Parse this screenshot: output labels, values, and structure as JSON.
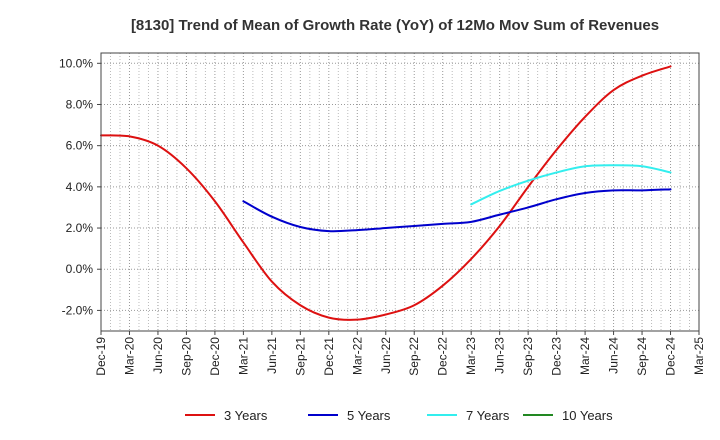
{
  "chart_data": {
    "type": "line",
    "title": "[8130]  Trend of Mean of Growth Rate (YoY) of 12Mo Mov Sum of Revenues",
    "xlabel": "",
    "ylabel": "",
    "ylim": [
      -3.0,
      10.5
    ],
    "yticks": [
      -2.0,
      0.0,
      2.0,
      4.0,
      6.0,
      8.0,
      10.0
    ],
    "ytick_labels": [
      "-2.0%",
      "0.0%",
      "2.0%",
      "4.0%",
      "6.0%",
      "8.0%",
      "10.0%"
    ],
    "categories": [
      "Dec-19",
      "Mar-20",
      "Jun-20",
      "Sep-20",
      "Dec-20",
      "Mar-21",
      "Jun-21",
      "Sep-21",
      "Dec-21",
      "Mar-22",
      "Jun-22",
      "Sep-22",
      "Dec-22",
      "Mar-23",
      "Jun-23",
      "Sep-23",
      "Dec-23",
      "Mar-24",
      "Jun-24",
      "Sep-24",
      "Dec-24",
      "Mar-25"
    ],
    "grid": true,
    "legend": "bottom",
    "series": [
      {
        "name": "3 Years",
        "color": "#dd1111",
        "values": [
          6.5,
          6.45,
          6.0,
          4.9,
          3.3,
          1.3,
          -0.6,
          -1.75,
          -2.35,
          -2.45,
          -2.2,
          -1.75,
          -0.8,
          0.5,
          2.1,
          4.0,
          5.8,
          7.4,
          8.7,
          9.4,
          9.85,
          null
        ]
      },
      {
        "name": "5 Years",
        "color": "#0000cc",
        "values": [
          null,
          null,
          null,
          null,
          null,
          3.3,
          2.55,
          2.05,
          1.85,
          1.9,
          2.0,
          2.1,
          2.2,
          2.3,
          2.65,
          3.0,
          3.4,
          3.7,
          3.83,
          3.83,
          3.88,
          null
        ]
      },
      {
        "name": "7 Years",
        "color": "#33eeee",
        "values": [
          null,
          null,
          null,
          null,
          null,
          null,
          null,
          null,
          null,
          null,
          null,
          null,
          null,
          3.15,
          3.8,
          4.3,
          4.7,
          5.0,
          5.05,
          5.0,
          4.7,
          null
        ]
      },
      {
        "name": "10 Years",
        "color": "#228822",
        "values": [
          null,
          null,
          null,
          null,
          null,
          null,
          null,
          null,
          null,
          null,
          null,
          null,
          null,
          null,
          null,
          null,
          null,
          null,
          null,
          null,
          null,
          null
        ]
      }
    ]
  }
}
